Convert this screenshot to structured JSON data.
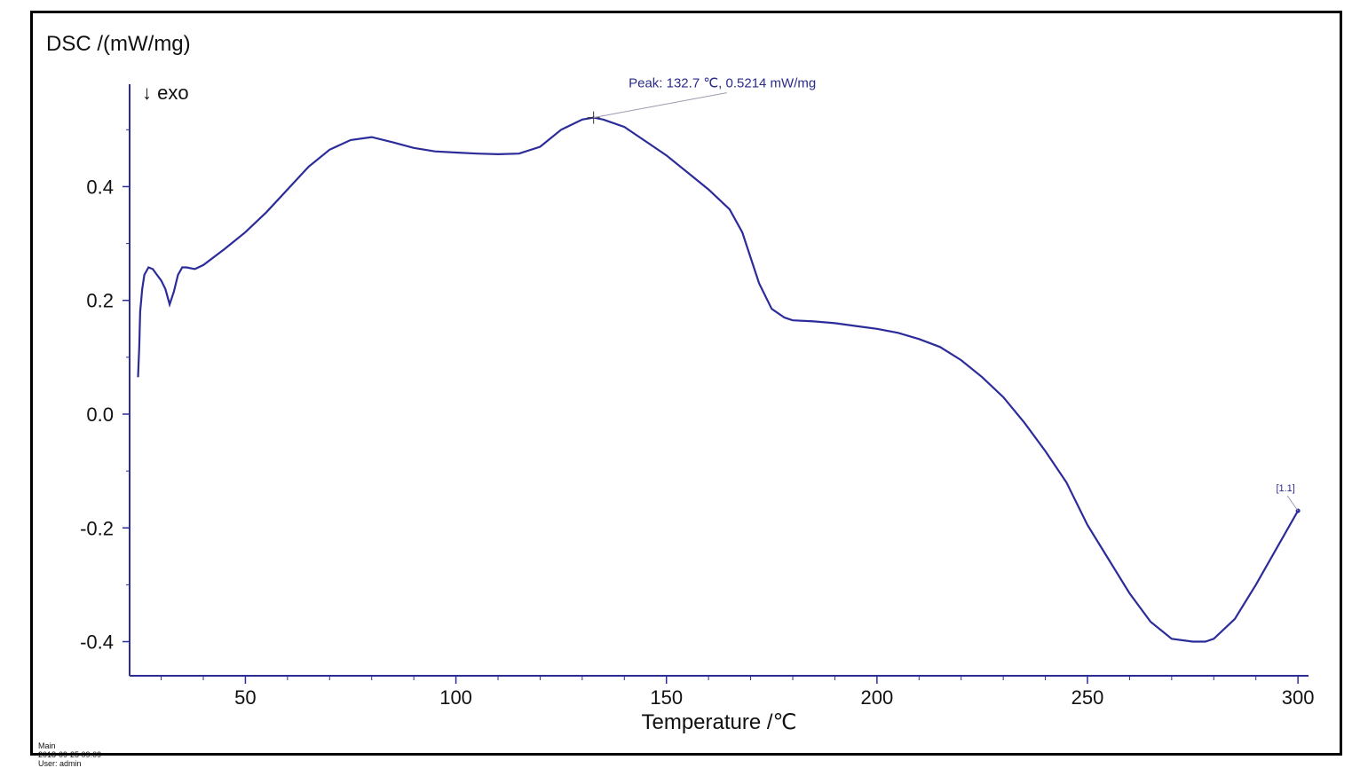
{
  "chart_data": {
    "type": "line",
    "ylabel": "DSC /(mW/mg)",
    "xlabel": "Temperature /℃",
    "direction_note": "↓ exo",
    "xlim": [
      22.5,
      302.5
    ],
    "ylim": [
      -0.46,
      0.58
    ],
    "x_ticks": [
      50,
      100,
      150,
      200,
      250,
      300
    ],
    "x_tick_labels": [
      "50",
      "100",
      "150",
      "200",
      "250",
      "300"
    ],
    "y_ticks": [
      0.4,
      0.2,
      0.0,
      -0.2,
      -0.4
    ],
    "y_tick_labels": [
      "0.4",
      "0.2",
      "0.0",
      "-0.2",
      "-0.4"
    ],
    "line_color": "#2b2b9a",
    "series": [
      {
        "x": [
          24.5,
          24.8,
          25.0,
          25.5,
          26.0,
          27.0,
          28.0,
          29.0,
          30.0,
          31.0,
          32.0,
          33.0,
          34.0,
          35.0,
          36.0,
          38.0,
          40.0,
          45.0,
          50.0,
          55.0,
          60.0,
          65.0,
          70.0,
          75.0,
          80.0,
          85.0,
          90.0,
          95.0,
          100.0,
          105.0,
          110.0,
          115.0,
          120.0,
          125.0,
          130.0,
          132.7,
          135.0,
          140.0,
          145.0,
          150.0,
          155.0,
          160.0,
          165.0,
          168.0,
          170.0,
          172.0,
          175.0,
          178.0,
          180.0,
          185.0,
          190.0,
          195.0,
          200.0,
          205.0,
          210.0,
          215.0,
          220.0,
          225.0,
          230.0,
          235.0,
          240.0,
          245.0,
          250.0,
          255.0,
          260.0,
          265.0,
          270.0,
          275.0,
          278.0,
          280.0,
          285.0,
          290.0,
          295.0,
          300.0
        ],
        "y": [
          0.065,
          0.12,
          0.18,
          0.22,
          0.245,
          0.258,
          0.255,
          0.245,
          0.235,
          0.22,
          0.193,
          0.215,
          0.245,
          0.258,
          0.258,
          0.255,
          0.262,
          0.29,
          0.32,
          0.355,
          0.395,
          0.435,
          0.465,
          0.482,
          0.487,
          0.478,
          0.468,
          0.462,
          0.46,
          0.458,
          0.457,
          0.458,
          0.47,
          0.5,
          0.518,
          0.5214,
          0.518,
          0.505,
          0.48,
          0.455,
          0.425,
          0.395,
          0.36,
          0.32,
          0.275,
          0.23,
          0.185,
          0.17,
          0.165,
          0.163,
          0.16,
          0.155,
          0.15,
          0.143,
          0.132,
          0.118,
          0.095,
          0.065,
          0.03,
          -0.015,
          -0.065,
          -0.12,
          -0.195,
          -0.255,
          -0.315,
          -0.365,
          -0.395,
          -0.4,
          -0.4,
          -0.395,
          -0.36,
          -0.3,
          -0.235,
          -0.17
        ]
      }
    ],
    "annotations": [
      {
        "text": "Peak: 132.7 ℃, 0.5214 mW/mg",
        "x": 132.7,
        "y": 0.5214
      },
      {
        "text": "[1.1]",
        "x": 300.0,
        "y": -0.17
      }
    ]
  },
  "footer": {
    "section": "Main",
    "timestamp": "2018-09-25 09:09",
    "user": "User: admin"
  }
}
